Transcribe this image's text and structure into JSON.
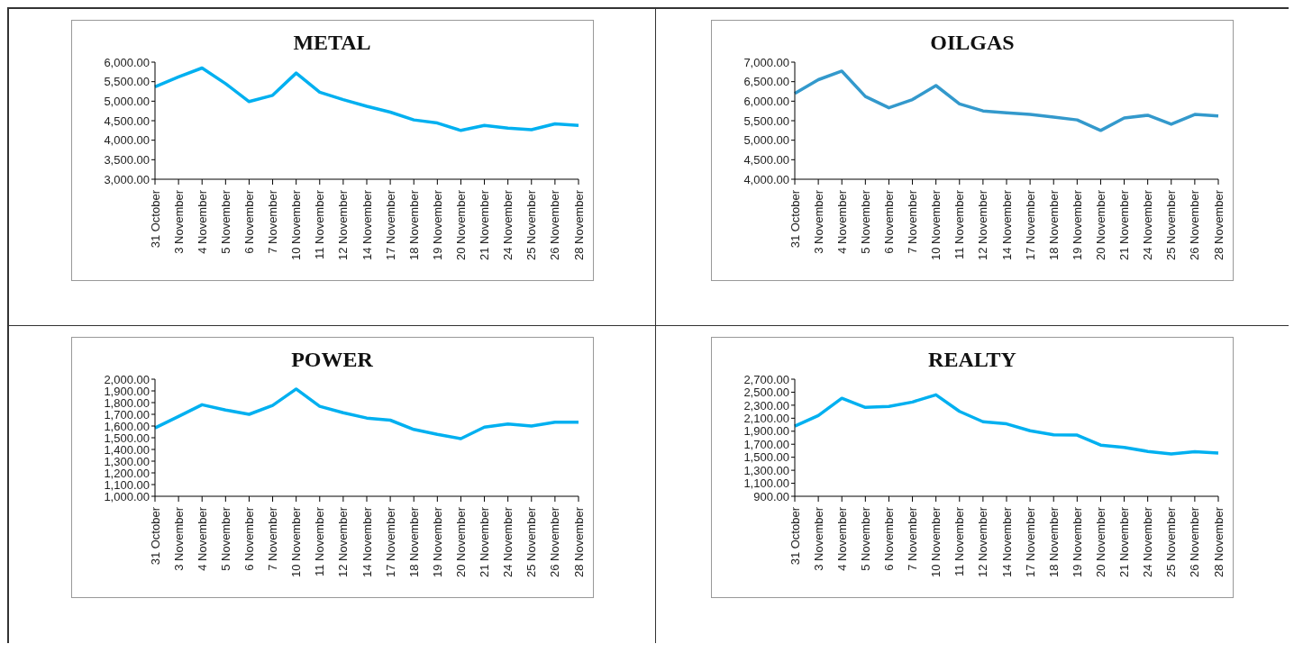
{
  "chart_data": [
    {
      "type": "line",
      "title": "METAL",
      "categories": [
        "31 October",
        "3 November",
        "4 November",
        "5 November",
        "6 November",
        "7 November",
        "10 November",
        "11 November",
        "12 November",
        "14 November",
        "17 November",
        "18 November",
        "19 November",
        "20 November",
        "21 November",
        "24 November",
        "25 November",
        "26 November",
        "28 November"
      ],
      "series": [
        {
          "color": "#00b0f0",
          "values": [
            5370,
            5620,
            5850,
            5450,
            4990,
            5150,
            5720,
            5230,
            5040,
            4870,
            4720,
            4520,
            4440,
            4250,
            4380,
            4310,
            4270,
            4420,
            4380
          ]
        }
      ],
      "ylim": [
        3000,
        6000
      ],
      "yticks": [
        {
          "value": 3000,
          "label": "3,000.00"
        },
        {
          "value": 3500,
          "label": "3,500.00"
        },
        {
          "value": 4000,
          "label": "4,000.00"
        },
        {
          "value": 4500,
          "label": "4,500.00"
        },
        {
          "value": 5000,
          "label": "5,000.00"
        },
        {
          "value": 5500,
          "label": "5,500.00"
        },
        {
          "value": 6000,
          "label": "6,000.00"
        }
      ],
      "grid": false,
      "legend": false,
      "marker": "none"
    },
    {
      "type": "line",
      "title": "OILGAS",
      "categories": [
        "31 October",
        "3 November",
        "4 November",
        "5 November",
        "6 November",
        "7 November",
        "10 November",
        "11 November",
        "12 November",
        "14 November",
        "17 November",
        "18 November",
        "19 November",
        "20 November",
        "21 November",
        "24 November",
        "25 November",
        "26 November",
        "28 November"
      ],
      "series": [
        {
          "color": "#3399cc",
          "values": [
            6200,
            6550,
            6770,
            6120,
            5830,
            6040,
            6400,
            5930,
            5750,
            5700,
            5660,
            5590,
            5520,
            5250,
            5570,
            5640,
            5410,
            5660,
            5620
          ]
        }
      ],
      "ylim": [
        4000,
        7000
      ],
      "yticks": [
        {
          "value": 4000,
          "label": "4,000.00"
        },
        {
          "value": 4500,
          "label": "4,500.00"
        },
        {
          "value": 5000,
          "label": "5,000.00"
        },
        {
          "value": 5500,
          "label": "5,500.00"
        },
        {
          "value": 6000,
          "label": "6,000.00"
        },
        {
          "value": 6500,
          "label": "6,500.00"
        },
        {
          "value": 7000,
          "label": "7,000.00"
        }
      ],
      "grid": false,
      "legend": false,
      "marker": "none"
    },
    {
      "type": "line",
      "title": "POWER",
      "categories": [
        "31 October",
        "3 November",
        "4 November",
        "5 November",
        "6 November",
        "7 November",
        "10 November",
        "11 November",
        "12 November",
        "14 November",
        "17 November",
        "18 November",
        "19 November",
        "20 November",
        "21 November",
        "24 November",
        "25 November",
        "26 November",
        "28 November"
      ],
      "series": [
        {
          "color": "#00b0f0",
          "values": [
            1584,
            1682,
            1782,
            1737,
            1700,
            1776,
            1916,
            1768,
            1713,
            1668,
            1650,
            1571,
            1529,
            1492,
            1590,
            1618,
            1600,
            1632,
            1632
          ]
        }
      ],
      "ylim": [
        1000,
        2000
      ],
      "yticks": [
        {
          "value": 1000,
          "label": "1,000.00"
        },
        {
          "value": 1100,
          "label": "1,100.00"
        },
        {
          "value": 1200,
          "label": "1,200.00"
        },
        {
          "value": 1300,
          "label": "1,300.00"
        },
        {
          "value": 1400,
          "label": "1,400.00"
        },
        {
          "value": 1500,
          "label": "1,500.00"
        },
        {
          "value": 1600,
          "label": "1,600.00"
        },
        {
          "value": 1700,
          "label": "1,700.00"
        },
        {
          "value": 1800,
          "label": "1,800.00"
        },
        {
          "value": 1900,
          "label": "1,900.00"
        },
        {
          "value": 2000,
          "label": "2,000.00"
        }
      ],
      "grid": false,
      "legend": false,
      "marker": "none"
    },
    {
      "type": "line",
      "title": "REALTY",
      "categories": [
        "31 October",
        "3 November",
        "4 November",
        "5 November",
        "6 November",
        "7 November",
        "10 November",
        "11 November",
        "12 November",
        "14 November",
        "17 November",
        "18 November",
        "19 November",
        "20 November",
        "21 November",
        "24 November",
        "25 November",
        "26 November",
        "28 November"
      ],
      "series": [
        {
          "color": "#00b0f0",
          "values": [
            1979,
            2142,
            2407,
            2267,
            2282,
            2349,
            2460,
            2205,
            2046,
            2013,
            1907,
            1844,
            1840,
            1686,
            1652,
            1590,
            1551,
            1585,
            1565
          ]
        }
      ],
      "ylim": [
        900,
        2700
      ],
      "yticks": [
        {
          "value": 900,
          "label": "900.00"
        },
        {
          "value": 1100,
          "label": "1,100.00"
        },
        {
          "value": 1300,
          "label": "1,300.00"
        },
        {
          "value": 1500,
          "label": "1,500.00"
        },
        {
          "value": 1700,
          "label": "1,700.00"
        },
        {
          "value": 1900,
          "label": "1,900.00"
        },
        {
          "value": 2100,
          "label": "2,100.00"
        },
        {
          "value": 2300,
          "label": "2,300.00"
        },
        {
          "value": 2500,
          "label": "2,500.00"
        },
        {
          "value": 2700,
          "label": "2,700.00"
        }
      ],
      "grid": false,
      "legend": false,
      "marker": "none"
    }
  ]
}
